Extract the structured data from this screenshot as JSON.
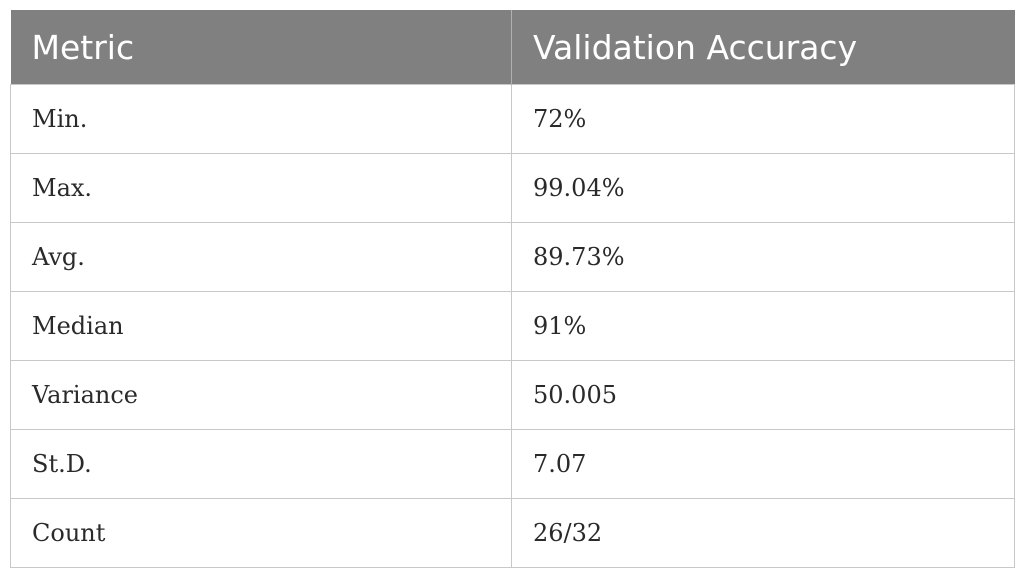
{
  "table": {
    "headers": [
      "Metric",
      "Validation Accuracy"
    ],
    "rows": [
      [
        "Min.",
        "72%"
      ],
      [
        "Max.",
        "99.04%"
      ],
      [
        "Avg.",
        "89.73%"
      ],
      [
        "Median",
        "91%"
      ],
      [
        "Variance",
        "50.005"
      ],
      [
        "St.D.",
        "7.07"
      ],
      [
        "Count",
        "26/32"
      ]
    ]
  }
}
